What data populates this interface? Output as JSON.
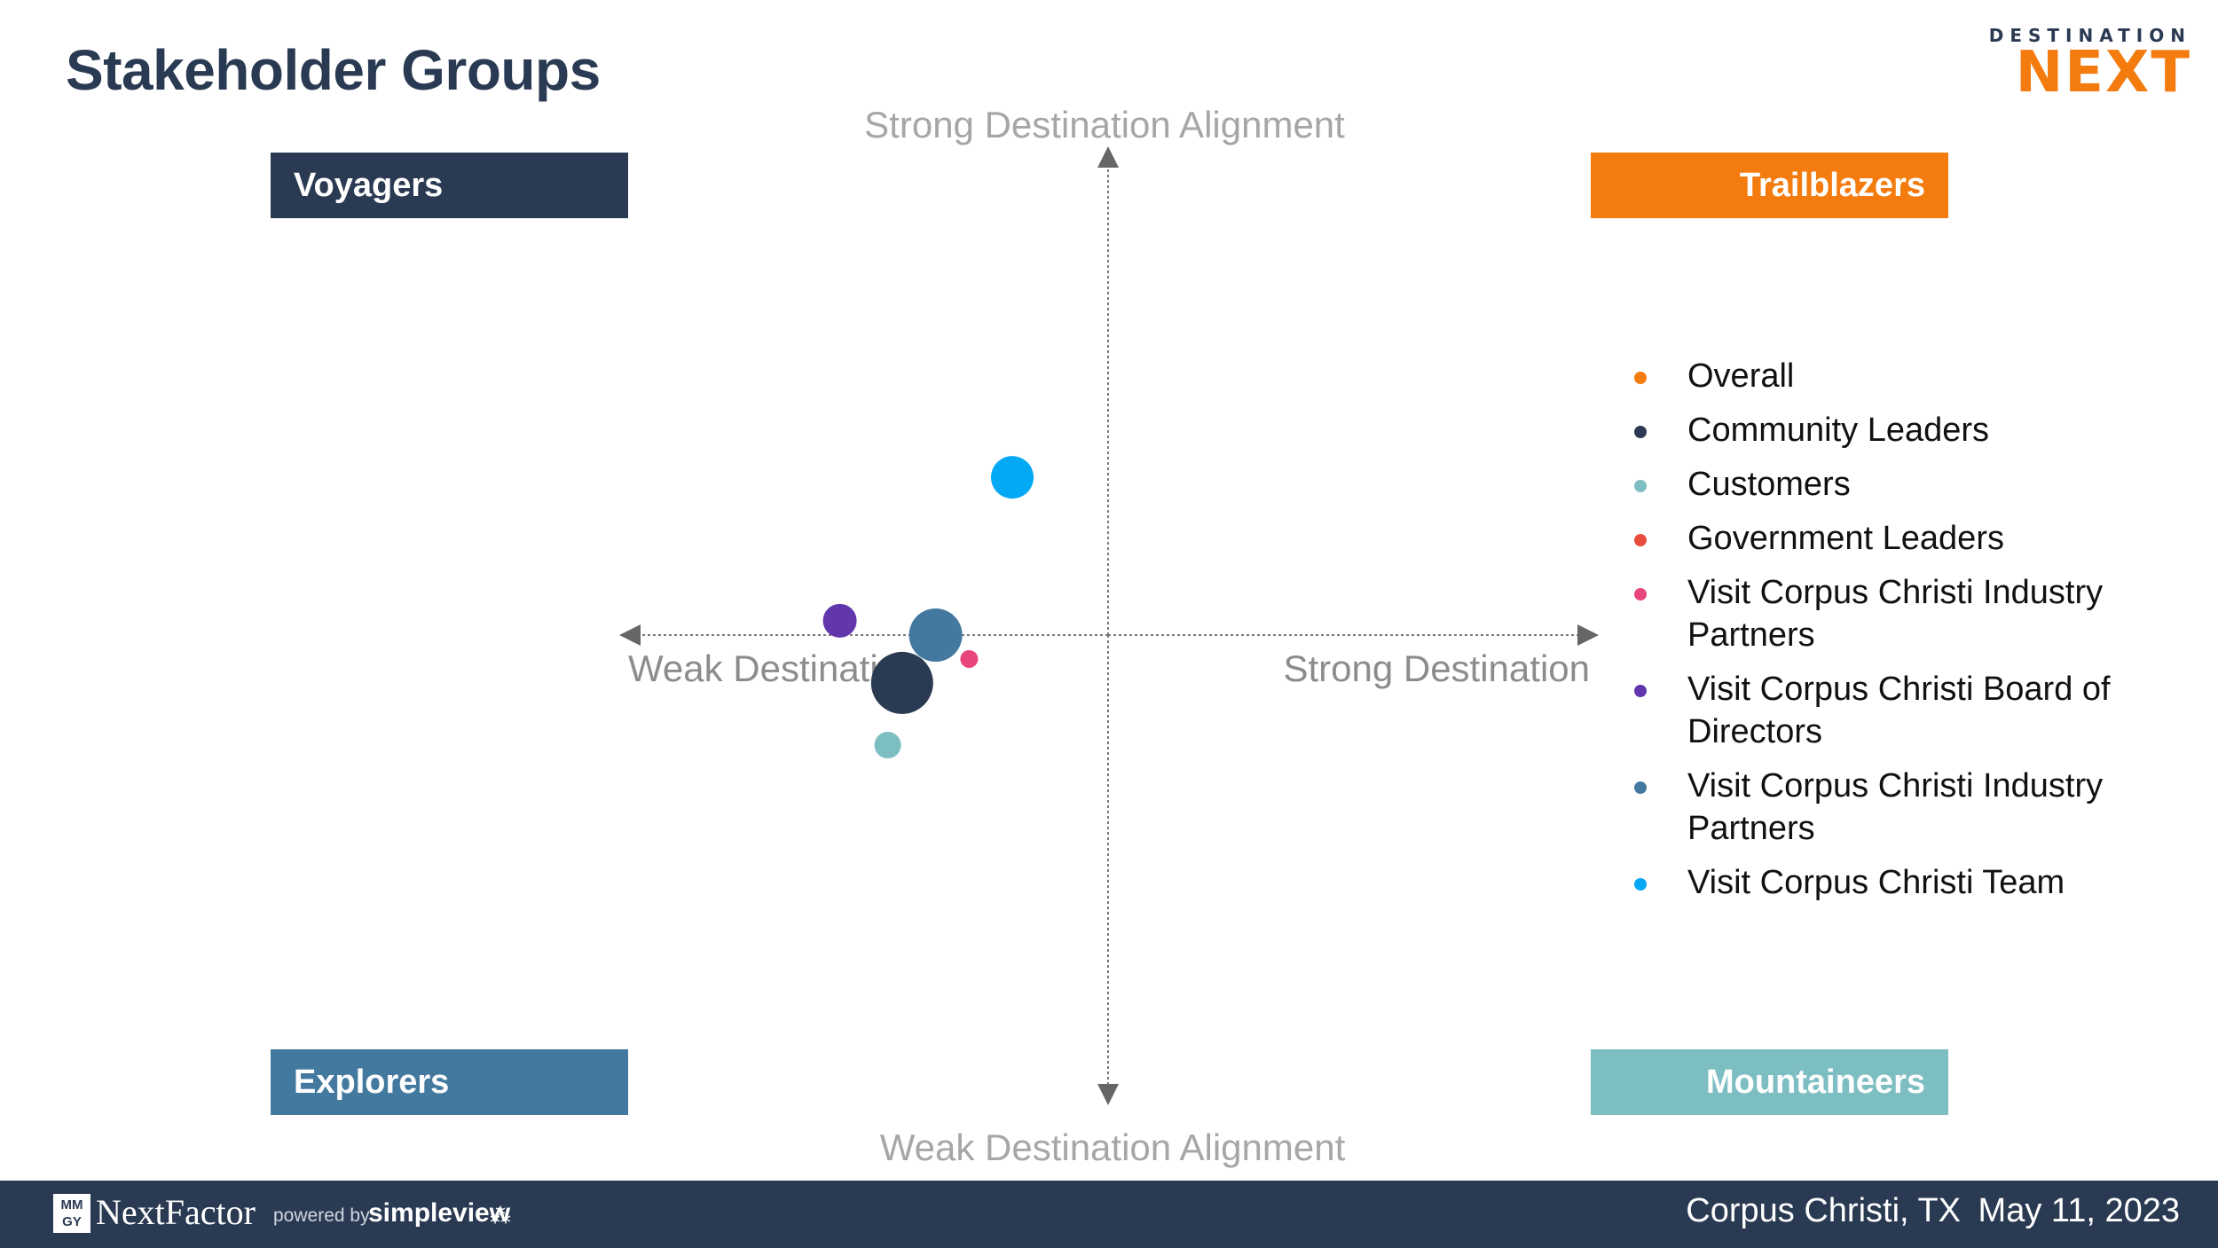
{
  "title": "Stakeholder Groups",
  "brand": {
    "top": "DESTINATION",
    "main": "NEXT",
    "color": "#f47b0e"
  },
  "quadrants": {
    "top_left": {
      "label": "Voyagers",
      "color": "#2a3a52"
    },
    "top_right": {
      "label": "Trailblazers",
      "color": "#f47b0e"
    },
    "bottom_left": {
      "label": "Explorers",
      "color": "#44799f"
    },
    "bottom_right": {
      "label": "Mountaineers",
      "color": "#7dbec2"
    }
  },
  "chart_data": {
    "type": "scatter",
    "title": "Stakeholder Groups",
    "x_axis": {
      "left_label": "Weak Destinati",
      "right_label": "Strong Destination",
      "range": [
        -1,
        1
      ]
    },
    "y_axis": {
      "top_label": "Strong Destination Alignment",
      "bottom_label": "Weak Destination Alignment",
      "range": [
        -1,
        1
      ]
    },
    "grid": false,
    "legend_position": "right",
    "series": [
      {
        "name": "Overall",
        "color": "#f47b0e",
        "x": -0.43,
        "y": -0.1,
        "size": 29,
        "visible": false
      },
      {
        "name": "Community Leaders",
        "color": "#2a3a52",
        "x": -0.43,
        "y": -0.1,
        "size": 35
      },
      {
        "name": "Customers",
        "color": "#7dbec2",
        "x": -0.46,
        "y": -0.23,
        "size": 15
      },
      {
        "name": "Government Leaders",
        "color": "#e84c3d",
        "x": -0.35,
        "y": -0.05,
        "size": 10,
        "visible": false
      },
      {
        "name": "Visit Corpus Christi Industry Partners",
        "color": "#e8457a",
        "x": -0.29,
        "y": -0.05,
        "size": 10
      },
      {
        "name": "Visit Corpus Christi Board of Directors",
        "color": "#6236ad",
        "x": -0.56,
        "y": 0.03,
        "size": 19
      },
      {
        "name": "Visit Corpus Christi Industry Partners",
        "color": "#44799f",
        "x": -0.36,
        "y": 0.0,
        "size": 30
      },
      {
        "name": "Visit Corpus Christi Team",
        "color": "#03a9f4",
        "x": -0.2,
        "y": 0.33,
        "size": 24
      }
    ]
  },
  "legend": [
    {
      "label": "Overall",
      "color": "#f47b0e"
    },
    {
      "label": "Community Leaders",
      "color": "#2a3a52"
    },
    {
      "label": "Customers",
      "color": "#7dbec2"
    },
    {
      "label": "Government Leaders",
      "color": "#e84c3d"
    },
    {
      "label": "Visit Corpus Christi Industry Partners",
      "color": "#e8457a"
    },
    {
      "label": "Visit Corpus Christi Board of Directors",
      "color": "#6236ad"
    },
    {
      "label": "Visit Corpus Christi Industry Partners",
      "color": "#44799f"
    },
    {
      "label": "Visit Corpus Christi Team",
      "color": "#03a9f4"
    }
  ],
  "footer": {
    "mmgy": "MM GY",
    "nextfactor": "NextFactor",
    "powered_by": "powered by",
    "simpleview": "simpleview",
    "location": "Corpus Christi, TX",
    "date": "May 11, 2023"
  }
}
